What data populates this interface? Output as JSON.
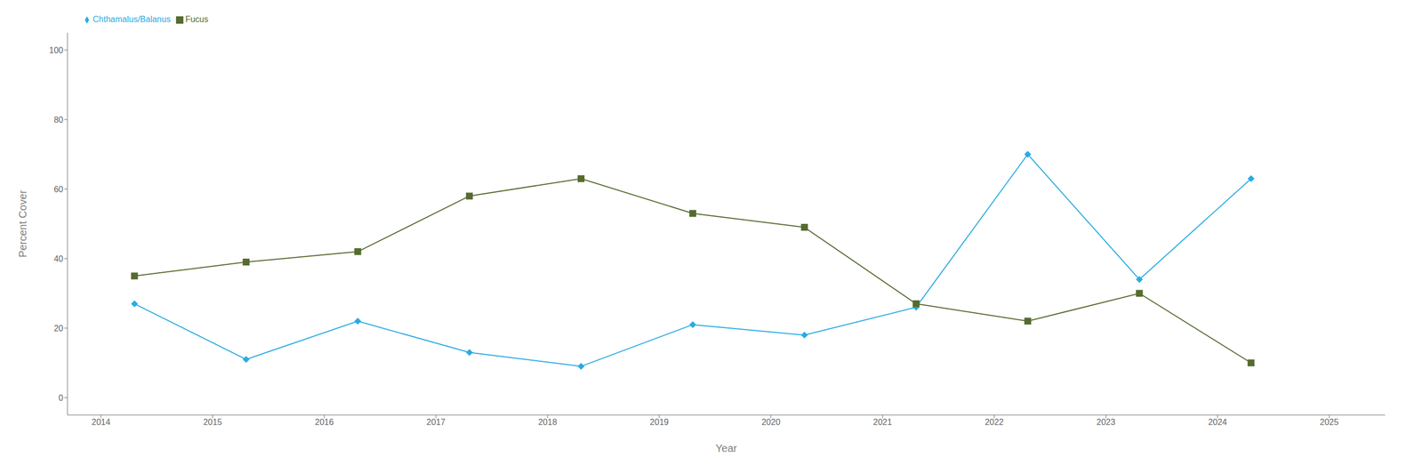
{
  "chart_data": {
    "type": "line",
    "x_label": "Year",
    "y_label": "Percent Cover",
    "x": [
      2014.3,
      2015.3,
      2016.3,
      2017.3,
      2018.3,
      2019.3,
      2020.3,
      2021.3,
      2022.3,
      2023.3,
      2024.3
    ],
    "series": [
      {
        "name": "Chthamalus/Balanus",
        "color": "#29ABE2",
        "marker": "diamond",
        "line_style": "solid",
        "values": [
          27,
          11,
          22,
          13,
          9,
          21,
          18,
          26,
          70,
          34,
          63
        ]
      },
      {
        "name": "Fucus",
        "color": "#556B2F",
        "marker": "square",
        "line_style": "solid",
        "values": [
          35,
          39,
          42,
          58,
          63,
          53,
          49,
          27,
          22,
          30,
          10
        ]
      }
    ],
    "xlim": [
      2013.7,
      2025.5
    ],
    "xticks": [
      2014,
      2015,
      2016,
      2017,
      2018,
      2019,
      2020,
      2021,
      2022,
      2023,
      2024,
      2025
    ],
    "ylim": [
      -5,
      105
    ],
    "yticks": [
      0,
      20,
      40,
      60,
      80,
      100
    ],
    "grid": false,
    "legend": "upper left"
  }
}
